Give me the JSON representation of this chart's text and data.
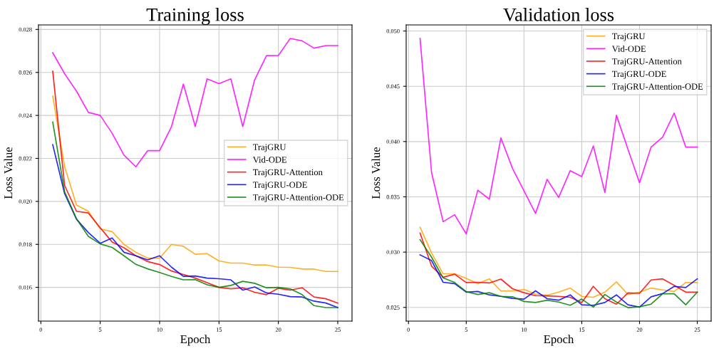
{
  "chart_data": [
    {
      "type": "line",
      "title": "Training loss",
      "xlabel": "Epoch",
      "ylabel": "Loss Value",
      "x": [
        1,
        2,
        3,
        4,
        5,
        6,
        7,
        8,
        9,
        10,
        11,
        12,
        13,
        14,
        15,
        16,
        17,
        18,
        19,
        20,
        21,
        22,
        23,
        24,
        25
      ],
      "series": [
        {
          "name": "TrajGRU",
          "color": "#ffa500",
          "values": [
            0.0249,
            0.02162,
            0.01983,
            0.01954,
            0.01872,
            0.01859,
            0.018,
            0.01763,
            0.01736,
            0.01736,
            0.018,
            0.01791,
            0.01754,
            0.01757,
            0.01723,
            0.01713,
            0.01713,
            0.01704,
            0.01704,
            0.01694,
            0.01693,
            0.01685,
            0.01685,
            0.01674,
            0.01674
          ]
        },
        {
          "name": "Vid-ODE",
          "color": "#ff00ff",
          "values": [
            0.02692,
            0.02594,
            0.02513,
            0.02414,
            0.024,
            0.02317,
            0.02215,
            0.02161,
            0.02236,
            0.02236,
            0.02348,
            0.02546,
            0.02348,
            0.0257,
            0.02548,
            0.0257,
            0.02348,
            0.02565,
            0.02678,
            0.02679,
            0.02758,
            0.02747,
            0.02713,
            0.02725,
            0.02725
          ]
        },
        {
          "name": "TrajGRU-Attention",
          "color": "#ff0000",
          "values": [
            0.02606,
            0.02074,
            0.01954,
            0.01946,
            0.01877,
            0.01811,
            0.01784,
            0.01747,
            0.0172,
            0.01706,
            0.01676,
            0.0166,
            0.01643,
            0.01622,
            0.016,
            0.01593,
            0.01598,
            0.01577,
            0.01566,
            0.01596,
            0.01587,
            0.01598,
            0.01555,
            0.01547,
            0.01527
          ]
        },
        {
          "name": "TrajGRU-ODE",
          "color": "#0000ff",
          "values": [
            0.02264,
            0.02036,
            0.01917,
            0.01855,
            0.01805,
            0.0183,
            0.01763,
            0.01747,
            0.01728,
            0.01747,
            0.01694,
            0.01651,
            0.01653,
            0.01643,
            0.0164,
            0.01635,
            0.01587,
            0.01602,
            0.01574,
            0.01568,
            0.01557,
            0.01555,
            0.01536,
            0.01527,
            0.01506
          ]
        },
        {
          "name": "TrajGRU-Attention-ODE",
          "color": "#008000",
          "values": [
            0.02369,
            0.02045,
            0.01919,
            0.01837,
            0.01802,
            0.01786,
            0.01747,
            0.01707,
            0.01686,
            0.01669,
            0.01651,
            0.01635,
            0.01636,
            0.01612,
            0.016,
            0.01609,
            0.01628,
            0.01619,
            0.01598,
            0.016,
            0.01593,
            0.01566,
            0.01515,
            0.01506,
            0.01506
          ]
        }
      ],
      "xlim": [
        -0.2,
        26.2
      ],
      "ylim": [
        0.01443,
        0.02821
      ],
      "xticks": [
        0,
        5,
        10,
        15,
        20,
        25
      ],
      "yticks": [
        {
          "value": 0.016,
          "label": "0.016"
        },
        {
          "value": 0.018,
          "label": "0.018"
        },
        {
          "value": 0.02,
          "label": "0.020"
        },
        {
          "value": 0.022,
          "label": "0.022"
        },
        {
          "value": 0.024,
          "label": "0.024"
        },
        {
          "value": 0.026,
          "label": "0.026"
        },
        {
          "value": 0.028,
          "label": "0.028"
        }
      ],
      "grid": true,
      "legend": "right"
    },
    {
      "type": "line",
      "title": "Validation loss",
      "xlabel": "Epoch",
      "ylabel": "Loss Value",
      "x": [
        1,
        2,
        3,
        4,
        5,
        6,
        7,
        8,
        9,
        10,
        11,
        12,
        13,
        14,
        15,
        16,
        17,
        18,
        19,
        20,
        21,
        22,
        23,
        24,
        25
      ],
      "series": [
        {
          "name": "TrajGRU",
          "color": "#ffa500",
          "values": [
            0.03225,
            0.02992,
            0.02804,
            0.02804,
            0.02762,
            0.02715,
            0.02758,
            0.02648,
            0.02648,
            0.02662,
            0.02621,
            0.0261,
            0.02638,
            0.02675,
            0.026,
            0.02592,
            0.02638,
            0.02731,
            0.02617,
            0.02638,
            0.02675,
            0.02658,
            0.02644,
            0.02725,
            0.02725
          ]
        },
        {
          "name": "Vid-ODE",
          "color": "#ff00ff",
          "values": [
            0.04933,
            0.03719,
            0.03275,
            0.03338,
            0.03165,
            0.0356,
            0.03479,
            0.04033,
            0.03758,
            0.03554,
            0.0335,
            0.03658,
            0.03494,
            0.03737,
            0.03683,
            0.0396,
            0.0354,
            0.04238,
            0.03929,
            0.03627,
            0.0395,
            0.0404,
            0.04258,
            0.0395,
            0.0395
          ]
        },
        {
          "name": "TrajGRU-Attention",
          "color": "#ff0000",
          "values": [
            0.03173,
            0.02873,
            0.02773,
            0.028,
            0.02725,
            0.02727,
            0.02721,
            0.02756,
            0.02669,
            0.02633,
            0.02606,
            0.02604,
            0.026,
            0.02592,
            0.02544,
            0.0269,
            0.02579,
            0.02529,
            0.02631,
            0.02627,
            0.02748,
            0.02758,
            0.027,
            0.02638,
            0.02638
          ]
        },
        {
          "name": "TrajGRU-ODE",
          "color": "#0000ff",
          "values": [
            0.02975,
            0.02923,
            0.02727,
            0.02715,
            0.02638,
            0.02644,
            0.02613,
            0.026,
            0.02581,
            0.02575,
            0.0265,
            0.02579,
            0.02565,
            0.02613,
            0.02523,
            0.02519,
            0.02544,
            0.02613,
            0.02523,
            0.02502,
            0.02596,
            0.02625,
            0.0269,
            0.02679,
            0.02758
          ]
        },
        {
          "name": "TrajGRU-Attention-ODE",
          "color": "#008000",
          "values": [
            0.03113,
            0.02954,
            0.02767,
            0.02725,
            0.02642,
            0.02617,
            0.02633,
            0.026,
            0.02596,
            0.02554,
            0.02544,
            0.02565,
            0.02548,
            0.02519,
            0.02575,
            0.02502,
            0.02617,
            0.02548,
            0.02498,
            0.02506,
            0.02529,
            0.02623,
            0.02623,
            0.02523,
            0.02638
          ]
        }
      ],
      "xlim": [
        -0.2,
        26.2
      ],
      "ylim": [
        0.02376,
        0.05055
      ],
      "xticks": [
        0,
        5,
        10,
        15,
        20,
        25
      ],
      "yticks": [
        {
          "value": 0.025,
          "label": "0.025"
        },
        {
          "value": 0.03,
          "label": "0.030"
        },
        {
          "value": 0.035,
          "label": "0.035"
        },
        {
          "value": 0.04,
          "label": "0.040"
        },
        {
          "value": 0.045,
          "label": "0.045"
        },
        {
          "value": 0.05,
          "label": "0.050"
        }
      ],
      "grid": true,
      "legend": "top right"
    }
  ]
}
